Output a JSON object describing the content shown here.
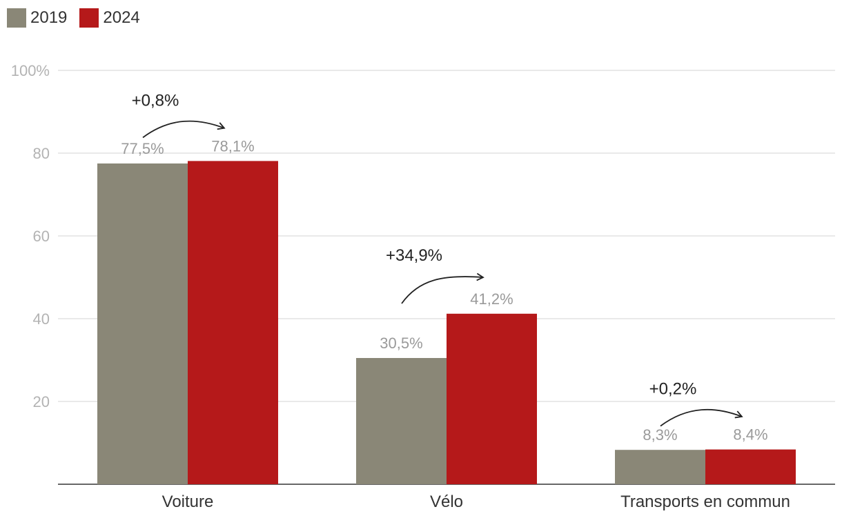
{
  "legend": [
    {
      "label": "2019",
      "color": "#8a8777"
    },
    {
      "label": "2024",
      "color": "#b5191a"
    }
  ],
  "chart_data": {
    "type": "bar",
    "title": "",
    "xlabel": "",
    "ylabel": "",
    "ylim": [
      0,
      100
    ],
    "yticks": [
      {
        "value": 20,
        "label": "20"
      },
      {
        "value": 40,
        "label": "40"
      },
      {
        "value": 60,
        "label": "60"
      },
      {
        "value": 80,
        "label": "80"
      },
      {
        "value": 100,
        "label": "100%"
      }
    ],
    "grid": true,
    "legend_position": "top-left",
    "categories": [
      "Voiture",
      "Vélo",
      "Transports en commun"
    ],
    "series": [
      {
        "name": "2019",
        "color": "#8a8777",
        "values": [
          77.5,
          30.5,
          8.3
        ],
        "labels": [
          "77,5%",
          "30,5%",
          "8,3%"
        ]
      },
      {
        "name": "2024",
        "color": "#b5191a",
        "values": [
          78.1,
          41.2,
          8.4
        ],
        "labels": [
          "78,1%",
          "41,2%",
          "8,4%"
        ]
      }
    ],
    "annotations": [
      "+0,8%",
      "+34,9%",
      "+0,2%"
    ]
  }
}
